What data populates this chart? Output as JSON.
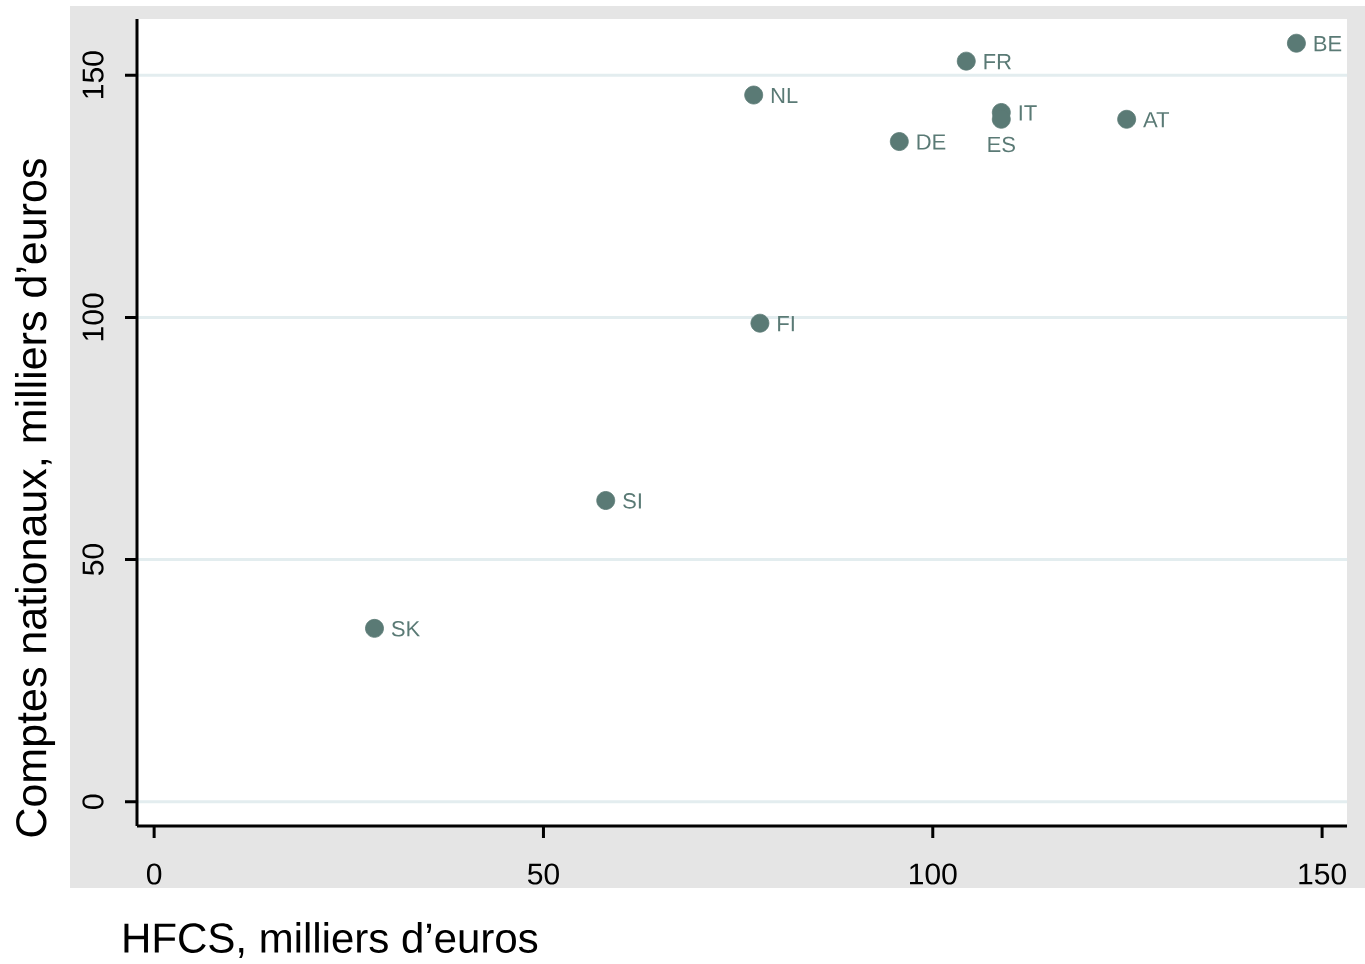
{
  "chart_data": {
    "type": "scatter",
    "xlabel": "HFCS, milliers d’euros",
    "ylabel": "Comptes nationaux, milliers d’euros",
    "x": [
      28.3,
      58.0,
      77.0,
      77.8,
      95.7,
      104.3,
      108.8,
      108.8,
      124.9,
      146.7
    ],
    "values": [
      35.8,
      62.2,
      145.9,
      98.8,
      136.3,
      152.9,
      142.3,
      140.9,
      140.9,
      156.6
    ],
    "color": "#5a7a75",
    "marker": "circle",
    "grid": "y",
    "xlim": [
      -2.2,
      153.2
    ],
    "ylim": [
      -5,
      161.6
    ],
    "xticks": [
      0,
      50,
      100,
      150
    ],
    "yticks": [
      0,
      50,
      100,
      150
    ],
    "annotations": [
      {
        "text": "SK",
        "x": 28.3,
        "y": 35.8
      },
      {
        "text": "SI",
        "x": 58.0,
        "y": 62.2
      },
      {
        "text": "NL",
        "x": 77.0,
        "y": 145.9
      },
      {
        "text": "FI",
        "x": 77.8,
        "y": 98.8
      },
      {
        "text": "DE",
        "x": 95.7,
        "y": 136.3
      },
      {
        "text": "FR",
        "x": 104.3,
        "y": 152.9
      },
      {
        "text": "IT",
        "x": 108.8,
        "y": 142.3
      },
      {
        "text": "ES",
        "x": 108.8,
        "y": 140.9
      },
      {
        "text": "AT",
        "x": 124.9,
        "y": 140.9
      },
      {
        "text": "BE",
        "x": 146.7,
        "y": 156.6
      }
    ]
  }
}
